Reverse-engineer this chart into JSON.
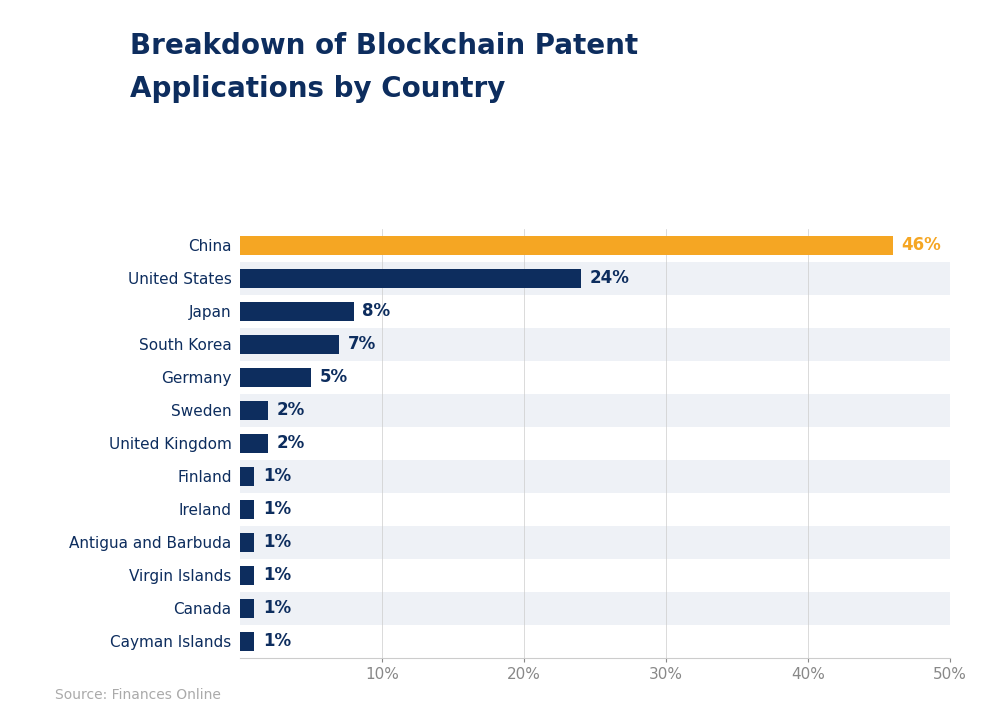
{
  "title_line1": "Breakdown of Blockchain Patent",
  "title_line2": "Applications by Country",
  "title_color": "#0d2d5e",
  "title_fontsize": 20,
  "categories": [
    "China",
    "United States",
    "Japan",
    "South Korea",
    "Germany",
    "Sweden",
    "United Kingdom",
    "Finland",
    "Ireland",
    "Antigua and Barbuda",
    "Virgin Islands",
    "Canada",
    "Cayman Islands"
  ],
  "values": [
    46,
    24,
    8,
    7,
    5,
    2,
    2,
    1,
    1,
    1,
    1,
    1,
    1
  ],
  "bar_colors": [
    "#F5A623",
    "#0d2d5e",
    "#0d2d5e",
    "#0d2d5e",
    "#0d2d5e",
    "#0d2d5e",
    "#0d2d5e",
    "#0d2d5e",
    "#0d2d5e",
    "#0d2d5e",
    "#0d2d5e",
    "#0d2d5e",
    "#0d2d5e"
  ],
  "label_colors": [
    "#F5A623",
    "#0d2d5e",
    "#0d2d5e",
    "#0d2d5e",
    "#0d2d5e",
    "#0d2d5e",
    "#0d2d5e",
    "#0d2d5e",
    "#0d2d5e",
    "#0d2d5e",
    "#0d2d5e",
    "#0d2d5e",
    "#0d2d5e"
  ],
  "xlim": [
    0,
    50
  ],
  "xtick_values": [
    10,
    20,
    30,
    40,
    50
  ],
  "xtick_labels": [
    "10%",
    "20%",
    "30%",
    "40%",
    "50%"
  ],
  "source_text": "Source: Finances Online",
  "source_color": "#aaaaaa",
  "source_fontsize": 10,
  "bg_color": "#ffffff",
  "row_bg_even": "#eef1f6",
  "row_bg_odd": "#ffffff",
  "bar_height": 0.58,
  "label_fontsize": 12,
  "tick_label_fontsize": 11,
  "category_fontsize": 11
}
